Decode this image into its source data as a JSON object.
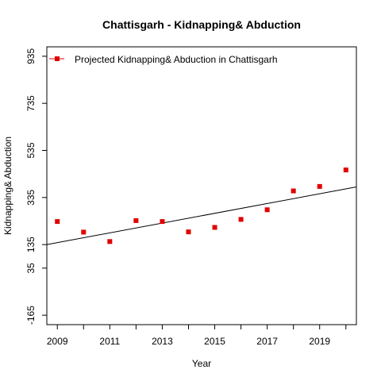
{
  "chart_data": {
    "type": "scatter",
    "title": "Chattisgarh  -  Kidnapping& Abduction",
    "xlabel": "Year",
    "ylabel": "Kidnapping& Abduction",
    "xlim": [
      2008.6,
      2020.4
    ],
    "ylim": [
      -205,
      975
    ],
    "x_ticks": [
      2009,
      2010,
      2011,
      2012,
      2013,
      2014,
      2015,
      2016,
      2017,
      2018,
      2019,
      2020
    ],
    "x_tick_labels": [
      {
        "value": 2009,
        "label": "2009"
      },
      {
        "value": 2011,
        "label": "2011"
      },
      {
        "value": 2013,
        "label": "2013"
      },
      {
        "value": 2015,
        "label": "2015"
      },
      {
        "value": 2017,
        "label": "2017"
      },
      {
        "value": 2019,
        "label": "2019"
      }
    ],
    "y_tick_labels": [
      {
        "value": -165,
        "label": "-165"
      },
      {
        "value": 35,
        "label": "35"
      },
      {
        "value": 135,
        "label": "135"
      },
      {
        "value": 335,
        "label": "335"
      },
      {
        "value": 535,
        "label": "535"
      },
      {
        "value": 735,
        "label": "735"
      },
      {
        "value": 935,
        "label": "935"
      }
    ],
    "series": [
      {
        "name": "Projected Kidnapping& Abduction  in  Chattisgarh",
        "color": "#e00000",
        "marker": "square",
        "x": [
          2009,
          2010,
          2011,
          2012,
          2013,
          2014,
          2015,
          2016,
          2017,
          2018,
          2019,
          2020
        ],
        "y": [
          233,
          188,
          148,
          237,
          233,
          189,
          208,
          242,
          283,
          363,
          382,
          452
        ]
      }
    ],
    "trend_line": {
      "color": "#000000",
      "x": [
        2008.6,
        2020.4
      ],
      "y": [
        135,
        380
      ]
    },
    "legend": {
      "position": "top-left"
    },
    "grid": false
  }
}
